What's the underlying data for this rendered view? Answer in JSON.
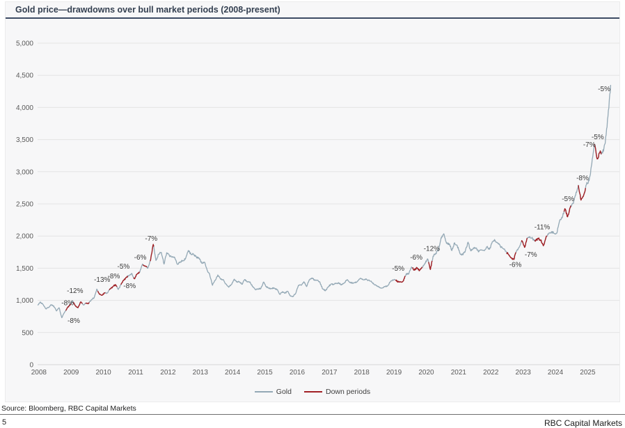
{
  "header": {
    "title": "Gold price—drawdowns over bull market periods (2008-present)"
  },
  "footer": {
    "source": "Source: Bloomberg, RBC Capital Markets",
    "page_number": "5",
    "brand": "RBC Capital Markets"
  },
  "chart_data": {
    "type": "line",
    "title": "Gold price—drawdowns over bull market periods (2008-present)",
    "xlabel": "",
    "ylabel": "",
    "xlim": [
      2008,
      2025.85
    ],
    "ylim": [
      0,
      5000
    ],
    "grid": true,
    "x_ticks": [
      2008,
      2009,
      2010,
      2011,
      2012,
      2013,
      2014,
      2015,
      2016,
      2017,
      2018,
      2019,
      2020,
      2021,
      2022,
      2023,
      2024,
      2025
    ],
    "y_ticks": [
      0,
      500,
      1000,
      1500,
      2000,
      2500,
      3000,
      3500,
      4000,
      4500,
      5000
    ],
    "y_tick_labels": [
      "0",
      "500",
      "1,000",
      "1,500",
      "2,000",
      "2,500",
      "3,000",
      "3,500",
      "4,000",
      "4,500",
      "5,000"
    ],
    "legend": {
      "position": "bottom",
      "items": [
        {
          "label": "Gold",
          "color": "#93a8b5"
        },
        {
          "label": "Down periods",
          "color": "#a11f24"
        }
      ]
    },
    "series": [
      {
        "name": "Gold",
        "color": "#93a8b5",
        "start_year": 2008,
        "step_months": 1,
        "values": [
          925,
          975,
          935,
          870,
          885,
          930,
          915,
          835,
          885,
          730,
          815,
          880,
          925,
          990,
          920,
          885,
          975,
          930,
          955,
          955,
          1010,
          1040,
          1175,
          1095,
          1080,
          1115,
          1115,
          1180,
          1215,
          1245,
          1170,
          1245,
          1310,
          1360,
          1385,
          1420,
          1335,
          1410,
          1440,
          1565,
          1535,
          1500,
          1630,
          1870,
          1620,
          1720,
          1745,
          1565,
          1740,
          1695,
          1670,
          1665,
          1560,
          1600,
          1615,
          1650,
          1775,
          1720,
          1715,
          1675,
          1660,
          1580,
          1595,
          1475,
          1395,
          1235,
          1310,
          1395,
          1330,
          1325,
          1255,
          1205,
          1245,
          1325,
          1285,
          1290,
          1250,
          1325,
          1285,
          1285,
          1210,
          1170,
          1175,
          1185,
          1285,
          1215,
          1185,
          1185,
          1190,
          1170,
          1095,
          1135,
          1115,
          1140,
          1065,
          1060,
          1115,
          1235,
          1235,
          1290,
          1215,
          1320,
          1350,
          1310,
          1315,
          1275,
          1175,
          1150,
          1210,
          1250,
          1245,
          1265,
          1270,
          1240,
          1270,
          1320,
          1280,
          1270,
          1275,
          1300,
          1345,
          1320,
          1325,
          1315,
          1300,
          1250,
          1225,
          1200,
          1190,
          1215,
          1220,
          1280,
          1320,
          1315,
          1290,
          1285,
          1305,
          1410,
          1415,
          1520,
          1470,
          1510,
          1465,
          1515,
          1580,
          1645,
          1480,
          1685,
          1730,
          1780,
          1975,
          2035,
          1885,
          1880,
          1775,
          1895,
          1850,
          1730,
          1710,
          1770,
          1905,
          1770,
          1815,
          1815,
          1755,
          1785,
          1775,
          1830,
          1795,
          1910,
          1935,
          1895,
          1840,
          1810,
          1765,
          1715,
          1660,
          1635,
          1770,
          1825,
          1930,
          1825,
          1970,
          1990,
          1960,
          1920,
          1965,
          1940,
          1850,
          1985,
          2035,
          2065,
          2040,
          2045,
          2230,
          2285,
          2425,
          2300,
          2445,
          2505,
          2635,
          2790,
          2560,
          2640,
          2800,
          2860,
          3125,
          3430,
          3200,
          3300,
          3290,
          3445,
          3860,
          4350
        ]
      }
    ],
    "down_periods": {
      "name": "Down periods",
      "color": "#a11f24",
      "ranges": [
        [
          2008.87,
          2009.04
        ],
        [
          2009.1,
          2009.4
        ],
        [
          2009.48,
          2009.6
        ],
        [
          2009.86,
          2010.1
        ],
        [
          2010.22,
          2010.46
        ],
        [
          2010.58,
          2010.8
        ],
        [
          2010.96,
          2011.16
        ],
        [
          2011.26,
          2011.4
        ],
        [
          2011.48,
          2011.6
        ],
        [
          2019.08,
          2019.4
        ],
        [
          2019.6,
          2019.92
        ],
        [
          2020.1,
          2020.23
        ],
        [
          2022.52,
          2022.82
        ],
        [
          2022.98,
          2023.18
        ],
        [
          2023.4,
          2023.78
        ],
        [
          2024.3,
          2024.52
        ],
        [
          2024.75,
          2024.98
        ],
        [
          2025.24,
          2025.46
        ]
      ]
    },
    "annotations": [
      {
        "t": 2008.93,
        "v": 960,
        "text": "-8%"
      },
      {
        "t": 2009.12,
        "v": 680,
        "text": "-8%"
      },
      {
        "t": 2009.16,
        "v": 1145,
        "text": "-12%"
      },
      {
        "t": 2010.0,
        "v": 1320,
        "text": "-13%"
      },
      {
        "t": 2010.36,
        "v": 1375,
        "text": "-8%"
      },
      {
        "t": 2010.66,
        "v": 1525,
        "text": "-5%"
      },
      {
        "t": 2010.85,
        "v": 1222,
        "text": "-8%"
      },
      {
        "t": 2011.18,
        "v": 1666,
        "text": "-6%"
      },
      {
        "t": 2011.52,
        "v": 1958,
        "text": "-7%"
      },
      {
        "t": 2019.17,
        "v": 1495,
        "text": "-5%"
      },
      {
        "t": 2019.73,
        "v": 1667,
        "text": "-6%"
      },
      {
        "t": 2020.21,
        "v": 1800,
        "text": "-12%"
      },
      {
        "t": 2022.8,
        "v": 1555,
        "text": "-6%"
      },
      {
        "t": 2023.28,
        "v": 1710,
        "text": "-7%"
      },
      {
        "t": 2023.63,
        "v": 2140,
        "text": "-11%"
      },
      {
        "t": 2024.43,
        "v": 2575,
        "text": "-5%"
      },
      {
        "t": 2024.88,
        "v": 2900,
        "text": "-8%"
      },
      {
        "t": 2025.09,
        "v": 3420,
        "text": "-7%"
      },
      {
        "t": 2025.35,
        "v": 3540,
        "text": "-5%"
      },
      {
        "t": 2025.55,
        "v": 4285,
        "text": "-5%"
      }
    ]
  }
}
